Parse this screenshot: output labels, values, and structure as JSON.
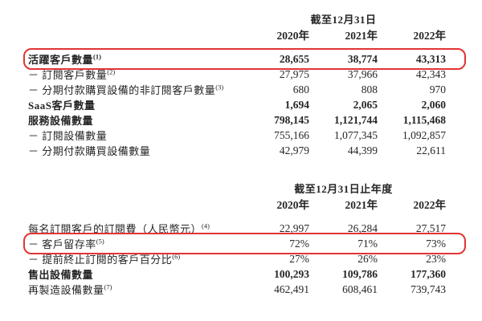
{
  "colors": {
    "background": "#ffffff",
    "text": "#262626",
    "highlight_border": "#e23434"
  },
  "sections": [
    {
      "period_header": "截至12月31日",
      "years": [
        "2020年",
        "2021年",
        "2022年"
      ],
      "rows": [
        {
          "label": "活躍客戶數量",
          "footnote": "(1)",
          "values": [
            "28,655",
            "38,774",
            "43,313"
          ],
          "bold": true,
          "highlighted": true
        },
        {
          "label": "－ 訂閱客戶數量",
          "footnote": "(2)",
          "values": [
            "27,975",
            "37,966",
            "42,343"
          ],
          "bold": false,
          "highlighted": false
        },
        {
          "label": "－ 分期付款購買設備的非訂閱客戶數量",
          "footnote": "(3)",
          "values": [
            "680",
            "808",
            "970"
          ],
          "bold": false,
          "highlighted": false
        },
        {
          "label": "SaaS客戶數量",
          "footnote": "",
          "values": [
            "1,694",
            "2,065",
            "2,060"
          ],
          "bold": true,
          "highlighted": false
        },
        {
          "label": "服務設備數量",
          "footnote": "",
          "values": [
            "798,145",
            "1,121,744",
            "1,115,468"
          ],
          "bold": true,
          "highlighted": false
        },
        {
          "label": "－ 訂閱設備數量",
          "footnote": "",
          "values": [
            "755,166",
            "1,077,345",
            "1,092,857"
          ],
          "bold": false,
          "highlighted": false
        },
        {
          "label": "－ 分期付款購買設備數量",
          "footnote": "",
          "values": [
            "42,979",
            "44,399",
            "22,611"
          ],
          "bold": false,
          "highlighted": false
        }
      ]
    },
    {
      "period_header": "截至12月31日止年度",
      "years": [
        "2020年",
        "2021年",
        "2022年"
      ],
      "rows": [
        {
          "label": "每名訂閱客戶的訂閱費（人民幣元）",
          "footnote": "(4)",
          "values": [
            "22,997",
            "26,284",
            "27,517"
          ],
          "bold": false,
          "highlighted": false
        },
        {
          "label": "－ 客戶留存率",
          "footnote": "(5)",
          "values": [
            "72%",
            "71%",
            "73%"
          ],
          "bold": false,
          "highlighted": true
        },
        {
          "label": "－ 提前終止訂閱的客戶百分比",
          "footnote": "(6)",
          "values": [
            "27%",
            "26%",
            "23%"
          ],
          "bold": false,
          "highlighted": false
        },
        {
          "label": "售出設備數量",
          "footnote": "",
          "values": [
            "100,293",
            "109,786",
            "177,360"
          ],
          "bold": true,
          "highlighted": false
        },
        {
          "label": "再製造設備數量",
          "footnote": "(7)",
          "values": [
            "462,491",
            "608,461",
            "739,743"
          ],
          "bold": false,
          "highlighted": false
        }
      ]
    }
  ]
}
